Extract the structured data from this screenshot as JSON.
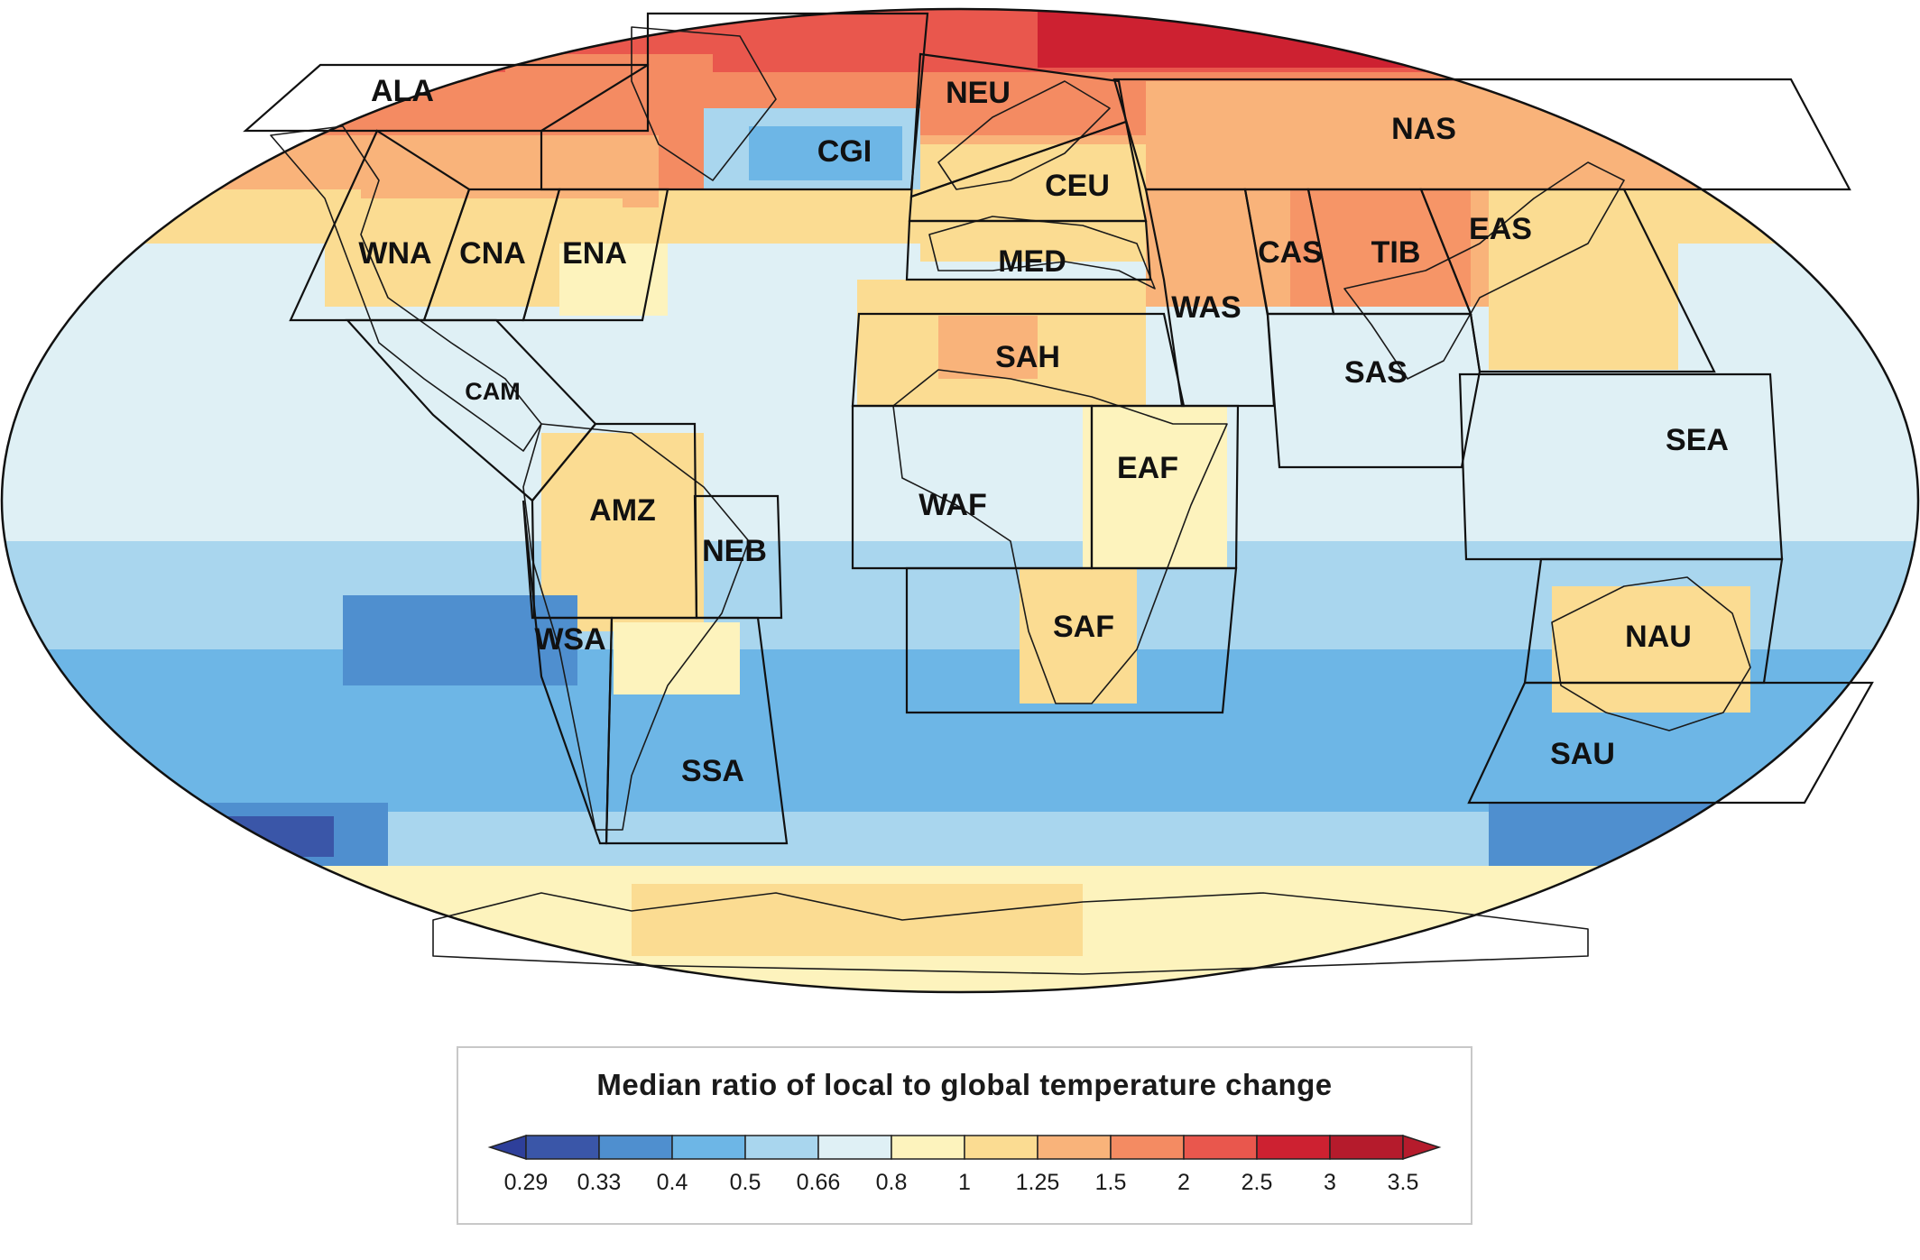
{
  "map": {
    "regions": [
      {
        "code": "ALA"
      },
      {
        "code": "CGI"
      },
      {
        "code": "NEU"
      },
      {
        "code": "NAS"
      },
      {
        "code": "CEU"
      },
      {
        "code": "WNA"
      },
      {
        "code": "CNA"
      },
      {
        "code": "ENA"
      },
      {
        "code": "MED"
      },
      {
        "code": "CAS"
      },
      {
        "code": "TIB"
      },
      {
        "code": "EAS"
      },
      {
        "code": "WAS"
      },
      {
        "code": "SAH"
      },
      {
        "code": "SAS"
      },
      {
        "code": "CAM"
      },
      {
        "code": "SEA"
      },
      {
        "code": "EAF"
      },
      {
        "code": "AMZ"
      },
      {
        "code": "WAF"
      },
      {
        "code": "NEB"
      },
      {
        "code": "SAF"
      },
      {
        "code": "WSA"
      },
      {
        "code": "NAU"
      },
      {
        "code": "SSA"
      },
      {
        "code": "SAU"
      }
    ]
  },
  "legend": {
    "title": "Median ratio of local to global temperature change",
    "ticks": [
      "0.29",
      "0.33",
      "0.4",
      "0.5",
      "0.66",
      "0.8",
      "1",
      "1.25",
      "1.5",
      "2",
      "2.5",
      "3",
      "3.5"
    ],
    "colors": [
      "#2e3f9a",
      "#3a56a8",
      "#4f8fcf",
      "#6db6e6",
      "#a9d6ee",
      "#dff0f5",
      "#fdf3bd",
      "#fbdc92",
      "#f9b37a",
      "#f48b62",
      "#e9574d",
      "#cd2131",
      "#b51b2c",
      "#b51b2c"
    ]
  }
}
